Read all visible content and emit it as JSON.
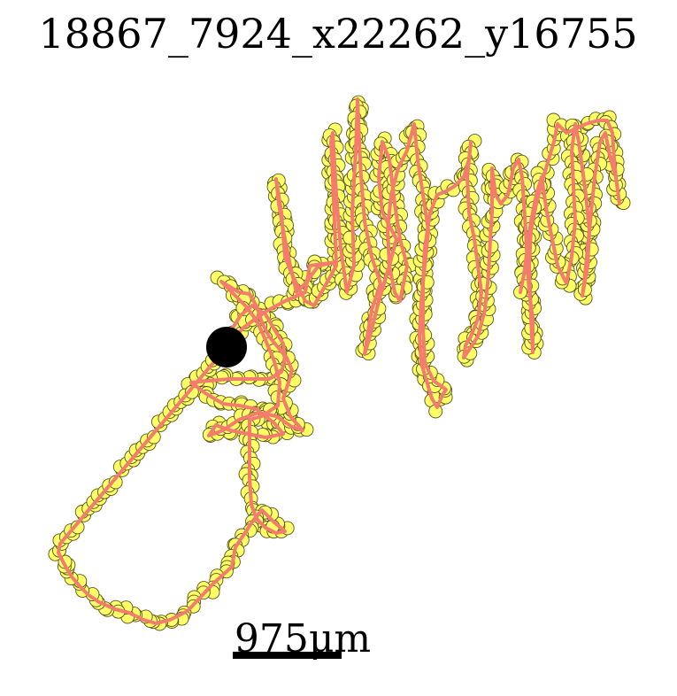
{
  "title": "18867_7924_x22262_y16755",
  "scale_bar": {
    "label": "975μm"
  },
  "colors": {
    "track_line": "#f47b6e",
    "point_fill": "#ffff66",
    "point_stroke": "#555522",
    "start_marker": "#000000",
    "background": "#ffffff"
  }
}
